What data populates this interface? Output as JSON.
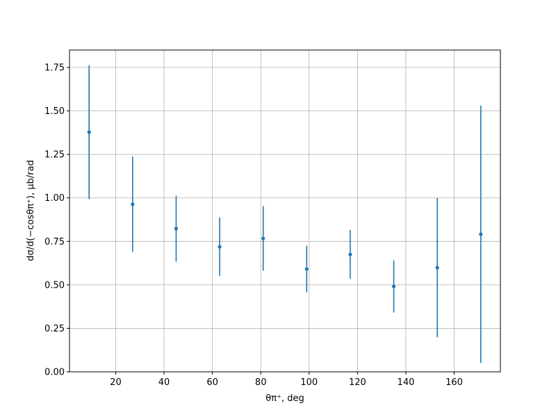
{
  "chart_data": {
    "type": "errorbar",
    "xlabel": "θπ⁺, deg",
    "ylabel": "dσ/d(−cosθπ⁺), μb/rad",
    "x": [
      9,
      27,
      45,
      63,
      81,
      99,
      117,
      135,
      153,
      171
    ],
    "series": [
      {
        "color": "#1f77b4",
        "values": [
          1.378,
          0.963,
          0.823,
          0.719,
          0.767,
          0.591,
          0.675,
          0.491,
          0.599,
          0.791
        ],
        "errors": [
          0.385,
          0.274,
          0.19,
          0.168,
          0.186,
          0.134,
          0.14,
          0.15,
          0.4,
          0.74
        ]
      }
    ],
    "xlim": [
      0.9,
      179.1
    ],
    "ylim": [
      0,
      1.85
    ],
    "xticks": [
      20,
      40,
      60,
      80,
      100,
      120,
      140,
      160
    ],
    "yticks": [
      {
        "value": 0,
        "label": "0.00"
      },
      {
        "value": 0.25,
        "label": "0.25"
      },
      {
        "value": 0.5,
        "label": "0.50"
      },
      {
        "value": 0.75,
        "label": "0.75"
      },
      {
        "value": 1,
        "label": "1.00"
      },
      {
        "value": 1.25,
        "label": "1.25"
      },
      {
        "value": 1.5,
        "label": "1.50"
      },
      {
        "value": 1.75,
        "label": "1.75"
      }
    ],
    "grid": true
  }
}
